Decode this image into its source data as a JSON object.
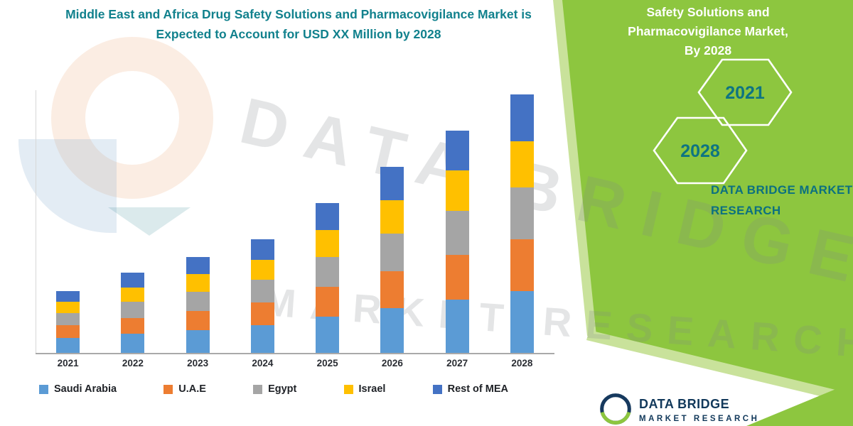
{
  "header": {
    "title": "Middle East and Africa Drug Safety Solutions and Pharmacovigilance Market is Expected to Account for USD XX Million by 2028"
  },
  "side_panel": {
    "heading_lines": [
      "Safety Solutions and",
      "Pharmacovigilance Market,",
      "By 2028"
    ],
    "hexagon_years": [
      "2021",
      "2028"
    ],
    "brand_line1": "DATA BRIDGE MARKET",
    "brand_line2": "RESEARCH",
    "panel_color": "#8DC63F",
    "accent_text_color": "#0E7482"
  },
  "watermark": {
    "line1": "DATA BRIDGE",
    "line2": "MARKET RESEARCH"
  },
  "footer": {
    "brand": "DATA BRIDGE",
    "brand_sub": "MARKET RESEARCH"
  },
  "chart_data": {
    "type": "bar",
    "stacked": true,
    "title": "Middle East and Africa Drug Safety Solutions and Pharmacovigilance Market is Expected to Account for USD XX Million by 2028",
    "categories": [
      "2021",
      "2022",
      "2023",
      "2024",
      "2025",
      "2026",
      "2027",
      "2028"
    ],
    "series": [
      {
        "name": "Saudi Arabia",
        "color": "#5B9BD5",
        "values": [
          5.8,
          7.4,
          8.9,
          10.6,
          13.9,
          17.3,
          20.6,
          24
        ]
      },
      {
        "name": "U.A.E",
        "color": "#ED7D31",
        "values": [
          4.8,
          6.2,
          7.4,
          8.8,
          11.6,
          14.4,
          17.2,
          20
        ]
      },
      {
        "name": "Egypt",
        "color": "#A5A5A5",
        "values": [
          4.8,
          6.2,
          7.4,
          8.8,
          11.6,
          14.4,
          17.2,
          20
        ]
      },
      {
        "name": "Israel",
        "color": "#FFC000",
        "values": [
          4.3,
          5.6,
          6.7,
          7.9,
          10.4,
          13.0,
          15.5,
          18
        ]
      },
      {
        "name": "Rest of MEA",
        "color": "#4472C4",
        "values": [
          4.3,
          5.6,
          6.7,
          7.9,
          10.4,
          13.0,
          15.5,
          18
        ]
      }
    ],
    "totals_note": "values are relative estimates read from bar heights; y-axis is unlabeled (USD XX Million)",
    "ylim": [
      0,
      105
    ],
    "grid": false,
    "y_axis_labels_visible": false,
    "legend_position": "bottom"
  }
}
